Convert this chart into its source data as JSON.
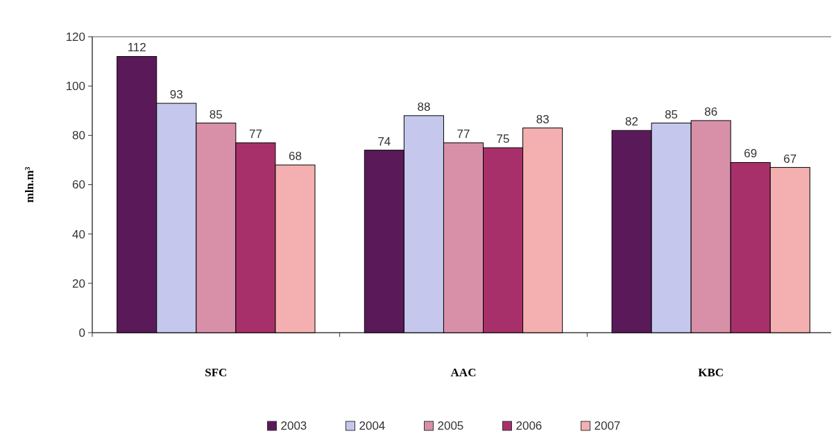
{
  "chart_data": {
    "type": "bar",
    "ylabel": "mln.m³",
    "categories": [
      "SFC",
      "AAC",
      "KBC"
    ],
    "series": [
      {
        "name": "2003",
        "color": "#5a1a5a",
        "values": [
          112,
          74,
          82
        ]
      },
      {
        "name": "2004",
        "color": "#c5c8ec",
        "values": [
          93,
          88,
          85
        ]
      },
      {
        "name": "2005",
        "color": "#d890a8",
        "values": [
          85,
          77,
          86
        ]
      },
      {
        "name": "2006",
        "color": "#a8306a",
        "values": [
          77,
          75,
          69
        ]
      },
      {
        "name": "2007",
        "color": "#f4b0b0",
        "values": [
          68,
          83,
          67
        ]
      }
    ],
    "ylim": [
      0,
      120
    ],
    "yticks": [
      0,
      20,
      40,
      60,
      80,
      100,
      120
    ],
    "data_labels": true,
    "legend": "bottom",
    "grid": false
  }
}
